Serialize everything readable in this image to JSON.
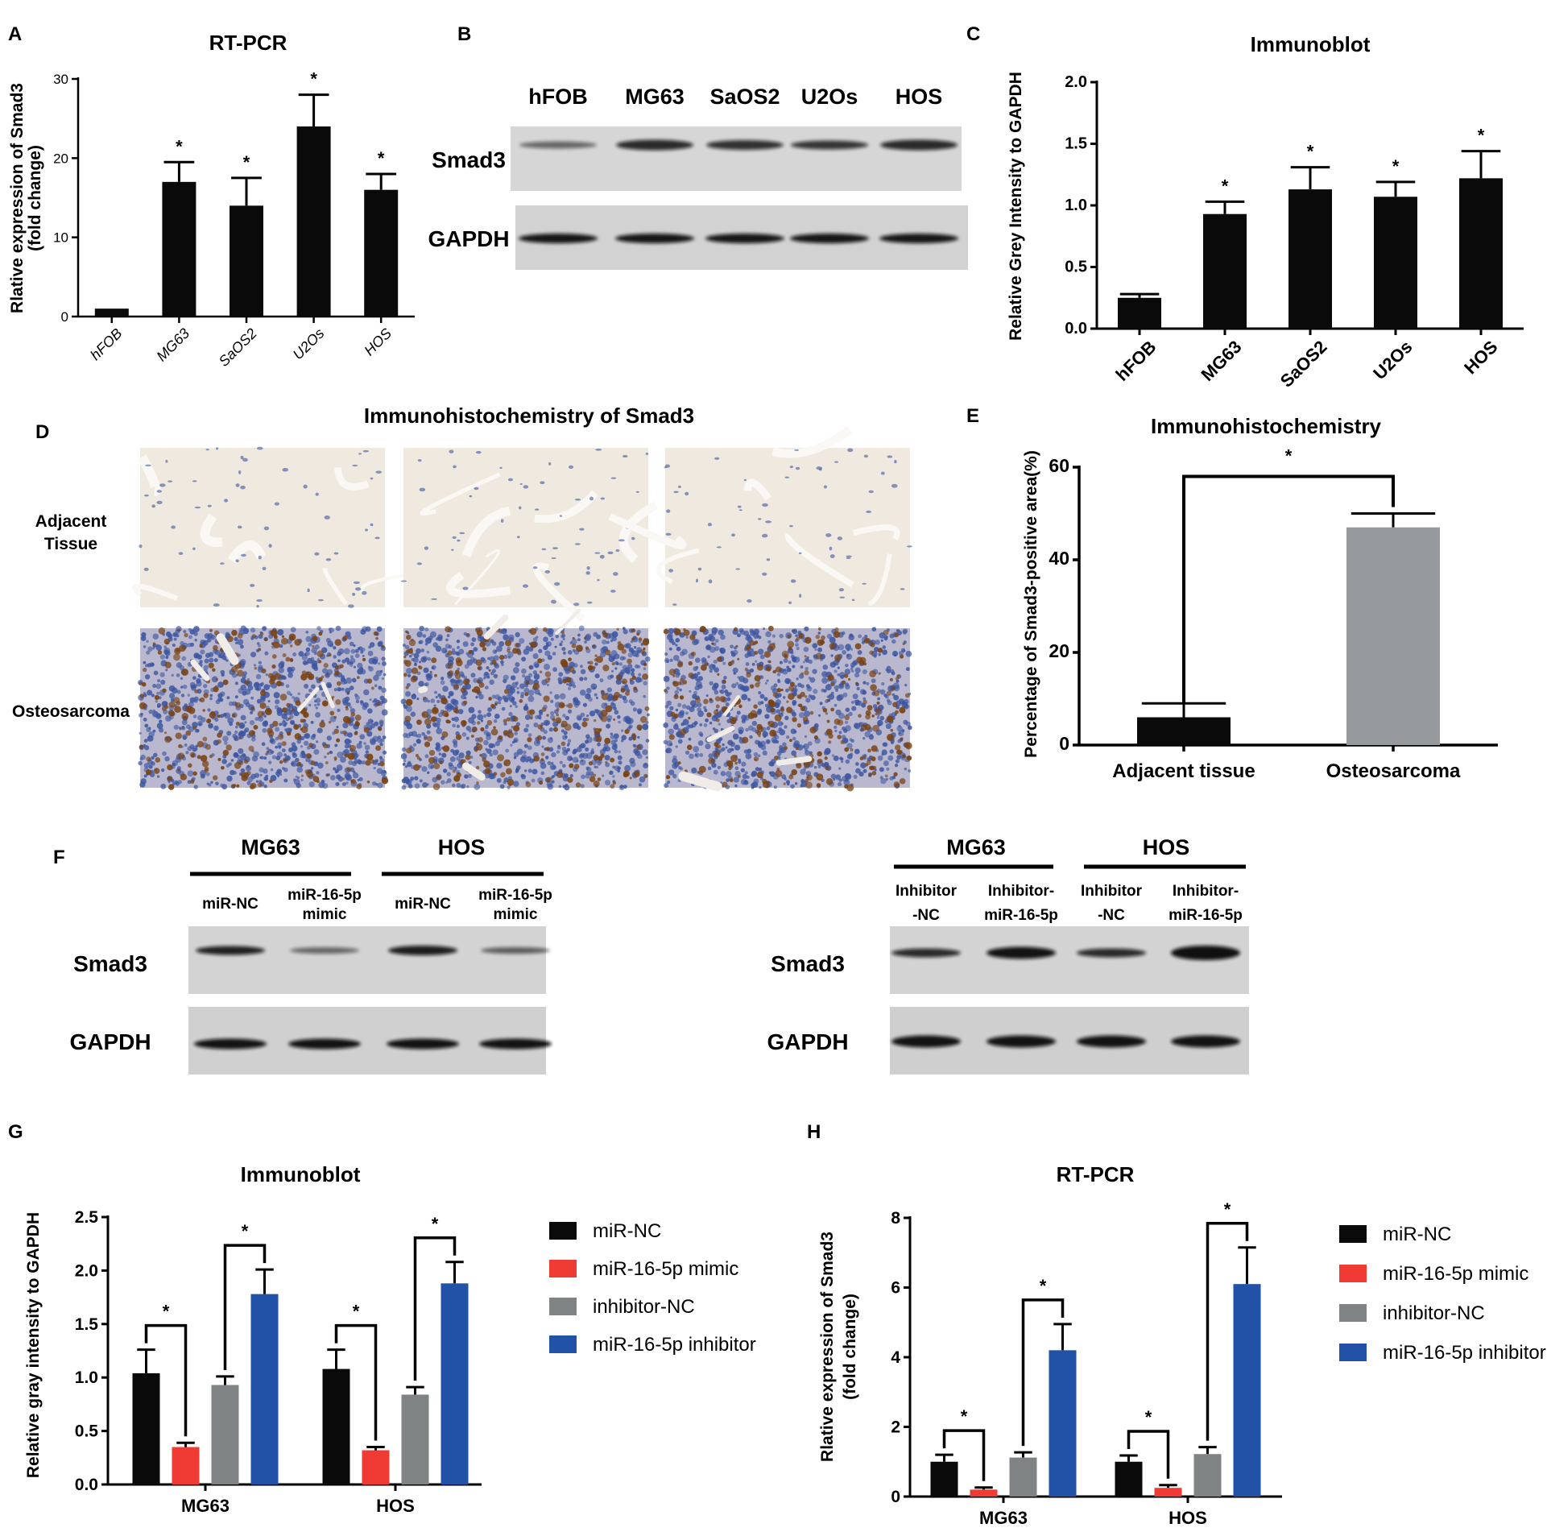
{
  "colors": {
    "black": "#0a0a0a",
    "red": "#ef3b34",
    "gray": "#808383",
    "blue": "#2251a8",
    "light_gray_bar": "#969a9c",
    "blot_bg": "#d4d4d4",
    "ihc_pale": "#efe9df",
    "ihc_blue": "#3d56a0",
    "ihc_brown": "#7a4314"
  },
  "panels": {
    "A": "A",
    "B": "B",
    "C": "C",
    "D": "D",
    "E": "E",
    "F": "F",
    "G": "G",
    "H": "H"
  },
  "chart_data": [
    {
      "id": "A",
      "type": "bar",
      "title": "RT-PCR",
      "ylabel": "Rlative expression of Smad3",
      "ylabel2": "(fold change)",
      "categories": [
        "hFOB",
        "MG63",
        "SaOS2",
        "U2Os",
        "HOS"
      ],
      "values": [
        1,
        17,
        14,
        24,
        16
      ],
      "errors": [
        0,
        2.5,
        3.5,
        4,
        2
      ],
      "significance": [
        "",
        "*",
        "*",
        "*",
        "*"
      ],
      "yticks": [
        "0",
        "10",
        "20",
        "30"
      ],
      "ylim": [
        0,
        30
      ]
    },
    {
      "id": "C",
      "type": "bar",
      "title": "Immunoblot",
      "ylabel": "Relative Grey Intensity to GAPDH",
      "categories": [
        "hFOB",
        "MG63",
        "SaOS2",
        "U2Os",
        "HOS"
      ],
      "values": [
        0.25,
        0.93,
        1.13,
        1.07,
        1.22
      ],
      "errors": [
        0.03,
        0.1,
        0.18,
        0.12,
        0.22
      ],
      "significance": [
        "",
        "*",
        "*",
        "*",
        "*"
      ],
      "yticks": [
        "0.0",
        "0.5",
        "1.0",
        "1.5",
        "2.0"
      ],
      "ylim": [
        0,
        2
      ]
    },
    {
      "id": "E",
      "type": "bar",
      "title": "Immunohistochemistry",
      "ylabel": "Percentage of Smad3-positive area(%)",
      "categories": [
        "Adjacent tissue",
        "Osteosarcoma"
      ],
      "values": [
        6,
        47
      ],
      "errors": [
        3,
        3
      ],
      "significance_bracket": "*",
      "yticks": [
        "0",
        "20",
        "40",
        "60"
      ],
      "ylim": [
        0,
        60
      ]
    },
    {
      "id": "G",
      "type": "bar",
      "title": "Immunoblot",
      "ylabel": "Relative gray intensity to GAPDH",
      "categories": [
        "MG63",
        "HOS"
      ],
      "series": [
        {
          "name": "miR-NC",
          "values": [
            1.04,
            1.08
          ],
          "errors": [
            0.22,
            0.18
          ]
        },
        {
          "name": "miR-16-5p mimic",
          "values": [
            0.35,
            0.32
          ],
          "errors": [
            0.04,
            0.03
          ]
        },
        {
          "name": "inhibitor-NC",
          "values": [
            0.93,
            0.84
          ],
          "errors": [
            0.08,
            0.07
          ]
        },
        {
          "name": "miR-16-5p inhibitor",
          "values": [
            1.78,
            1.88
          ],
          "errors": [
            0.23,
            0.2
          ]
        }
      ],
      "yticks": [
        "0.0",
        "0.5",
        "1.0",
        "1.5",
        "2.0",
        "2.5"
      ],
      "ylim": [
        0,
        2.5
      ],
      "significance": "*"
    },
    {
      "id": "H",
      "type": "bar",
      "title": "RT-PCR",
      "ylabel": "Rlative expression of Smad3",
      "ylabel2": "(fold change)",
      "categories": [
        "MG63",
        "HOS"
      ],
      "series": [
        {
          "name": "miR-NC",
          "values": [
            1.0,
            1.0
          ],
          "errors": [
            0.2,
            0.18
          ]
        },
        {
          "name": "miR-16-5p mimic",
          "values": [
            0.2,
            0.25
          ],
          "errors": [
            0.06,
            0.08
          ]
        },
        {
          "name": "inhibitor-NC",
          "values": [
            1.12,
            1.22
          ],
          "errors": [
            0.15,
            0.2
          ]
        },
        {
          "name": "miR-16-5p inhibitor",
          "values": [
            4.2,
            6.1
          ],
          "errors": [
            0.75,
            1.05
          ]
        }
      ],
      "yticks": [
        "0",
        "2",
        "4",
        "6",
        "8"
      ],
      "ylim": [
        0,
        8
      ],
      "significance": "*"
    }
  ],
  "blot_B": {
    "lanes": [
      "hFOB",
      "MG63",
      "SaOS2",
      "U2Os",
      "HOS"
    ],
    "rows": [
      "Smad3",
      "GAPDH"
    ]
  },
  "ihc_D": {
    "title": "Immunohistochemistry of Smad3",
    "row_adjacent_1": "Adjacent",
    "row_adjacent_2": "Tissue",
    "row_osteo": "Osteosarcoma"
  },
  "blot_F": {
    "left": {
      "group1": "MG63",
      "group2": "HOS",
      "lane1": "miR-NC",
      "lane2a": "miR-16-5p",
      "lane2b": "mimic",
      "lane3": "miR-NC",
      "lane4a": "miR-16-5p",
      "lane4b": "mimic",
      "rows": [
        "Smad3",
        "GAPDH"
      ]
    },
    "right": {
      "group1": "MG63",
      "group2": "HOS",
      "lane1a": "Inhibitor",
      "lane1b": "-NC",
      "lane2a": "Inhibitor-",
      "lane2b": "miR-16-5p",
      "lane3a": "Inhibitor",
      "lane3b": "-NC",
      "lane4a": "Inhibitor-",
      "lane4b": "miR-16-5p",
      "rows": [
        "Smad3",
        "GAPDH"
      ]
    }
  }
}
